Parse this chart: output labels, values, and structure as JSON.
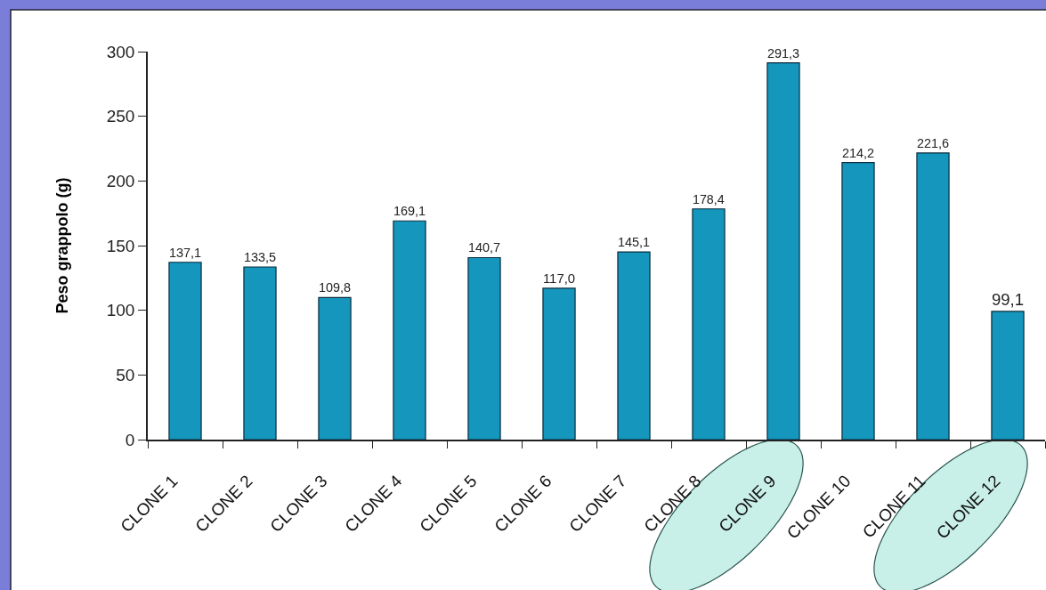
{
  "chart_data": {
    "type": "bar",
    "ylabel": "Peso grappolo (g)",
    "categories": [
      "CLONE 1",
      "CLONE 2",
      "CLONE 3",
      "CLONE 4",
      "CLONE 5",
      "CLONE 6",
      "CLONE 7",
      "CLONE 8",
      "CLONE 9",
      "CLONE 10",
      "CLONE 11",
      "CLONE 12"
    ],
    "values": [
      137.1,
      133.5,
      109.8,
      169.1,
      140.7,
      117.0,
      145.1,
      178.4,
      291.3,
      214.2,
      221.6,
      99.1
    ],
    "value_labels": [
      "137,1",
      "133,5",
      "109,8",
      "169,1",
      "140,7",
      "117,0",
      "145,1",
      "178,4",
      "291,3",
      "214,2",
      "221,6",
      "99,1"
    ],
    "color": "#1596bd",
    "ylim": [
      0,
      300
    ],
    "yticks": [
      0,
      50,
      100,
      150,
      200,
      250,
      300
    ]
  }
}
